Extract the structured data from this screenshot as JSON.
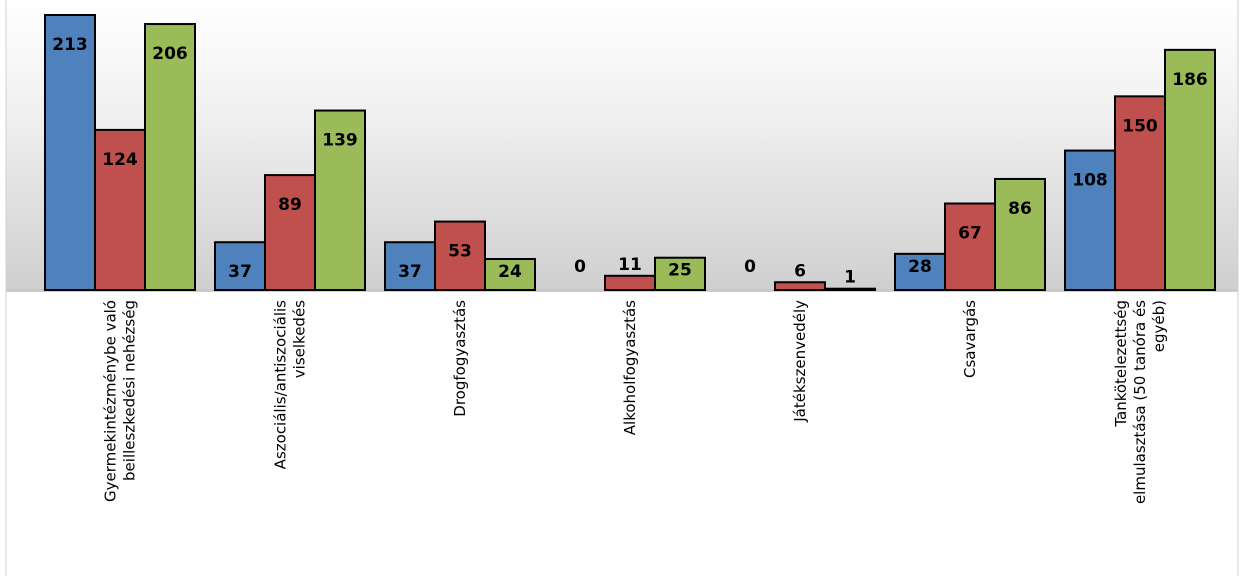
{
  "chart_data": {
    "type": "bar",
    "title": "",
    "xlabel": "",
    "ylabel": "",
    "ylim": [
      0,
      213
    ],
    "grid": false,
    "legend": "none",
    "categories": [
      [
        "Gyermekintézménybe való",
        "beilleszkedési nehézség"
      ],
      [
        "Aszociális/antiszociális",
        "viselkedés"
      ],
      [
        "Drogfogyasztás"
      ],
      [
        "Alkoholfogyasztás"
      ],
      [
        "Játékszenvedély"
      ],
      [
        "Csavargás"
      ],
      [
        "Tankötelezettség",
        "elmulasztása (50 tanóra és",
        "egyéb)"
      ]
    ],
    "series": [
      {
        "values": [
          213,
          37,
          37,
          0,
          0,
          28,
          108
        ],
        "color": "#4F81BD"
      },
      {
        "values": [
          124,
          89,
          53,
          11,
          6,
          67,
          150
        ],
        "color": "#C0504D"
      },
      {
        "values": [
          206,
          139,
          24,
          25,
          1,
          86,
          186
        ],
        "color": "#9BBB59"
      }
    ]
  }
}
